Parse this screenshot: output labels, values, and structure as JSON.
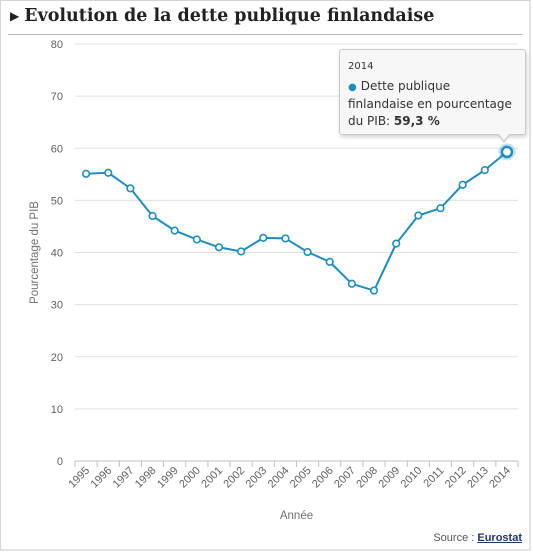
{
  "header": {
    "title": "Evolution de la dette publique finlandaise"
  },
  "tooltip": {
    "year": "2014",
    "series_label": "Dette publique finlandaise en pourcentage du PIB:",
    "value": "59,3 %"
  },
  "source": {
    "label": "Source :",
    "link": "Eurostat"
  },
  "colors": {
    "line": "#1f8dbd",
    "grid": "#e0e0e0",
    "axis": "#c0c0c0"
  },
  "chart_data": {
    "type": "line",
    "title": "Evolution de la dette publique finlandaise",
    "xlabel": "Année",
    "ylabel": "Pourcentage du PIB",
    "ylim": [
      0,
      80
    ],
    "yticks": [
      0,
      10,
      20,
      30,
      40,
      50,
      60,
      70,
      80
    ],
    "x": [
      "1995",
      "1996",
      "1997",
      "1998",
      "1999",
      "2000",
      "2001",
      "2002",
      "2003",
      "2004",
      "2005",
      "2006",
      "2007",
      "2008",
      "2009",
      "2010",
      "2011",
      "2012",
      "2013",
      "2014"
    ],
    "series": [
      {
        "name": "Dette publique finlandaise",
        "values": [
          55.1,
          55.3,
          52.3,
          47.0,
          44.2,
          42.5,
          41.0,
          40.2,
          42.8,
          42.7,
          40.1,
          38.2,
          34.0,
          32.7,
          41.7,
          47.1,
          48.5,
          53.0,
          55.8,
          59.3
        ]
      }
    ],
    "grid": true,
    "highlighted_point": "2014"
  }
}
